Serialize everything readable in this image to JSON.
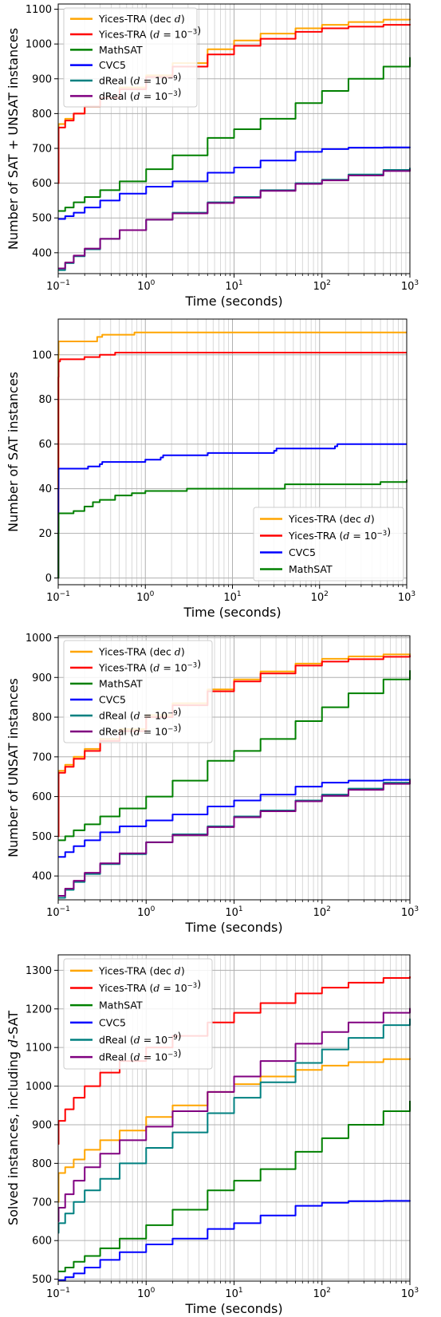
{
  "figure_title": "",
  "chart_data": [
    {
      "type": "line",
      "xscale": "log",
      "xlim": [
        0.1,
        1000
      ],
      "ylim": [
        340,
        1115
      ],
      "xlabel": "Time (seconds)",
      "ylabel": "Number of SAT + UNSAT instances",
      "xtick_labels": [
        "10−1",
        "100",
        "101",
        "102",
        "103"
      ],
      "yticks": [
        400,
        500,
        600,
        700,
        800,
        900,
        1000,
        1100
      ],
      "grid": true,
      "legend_position": "top-left",
      "series": [
        {
          "name": "Yices-TRA (dec d)",
          "color": "#FFA500",
          "x": [
            0.1,
            0.101,
            0.12,
            0.15,
            0.2,
            0.3,
            0.5,
            1,
            2,
            5,
            10,
            20,
            50,
            100,
            200,
            500,
            1000
          ],
          "y": [
            600,
            770,
            785,
            800,
            820,
            845,
            875,
            910,
            945,
            985,
            1010,
            1030,
            1045,
            1055,
            1063,
            1070,
            1072
          ]
        },
        {
          "name": "Yices-TRA (d = 10−3)",
          "color": "#FF0000",
          "x": [
            0.1,
            0.101,
            0.12,
            0.15,
            0.2,
            0.3,
            0.5,
            1,
            2,
            5,
            10,
            20,
            50,
            100,
            200,
            500,
            1000
          ],
          "y": [
            600,
            760,
            780,
            800,
            820,
            845,
            870,
            905,
            935,
            970,
            995,
            1015,
            1035,
            1045,
            1050,
            1055,
            1057
          ]
        },
        {
          "name": "MathSAT",
          "color": "#008000",
          "x": [
            0.1,
            0.12,
            0.15,
            0.2,
            0.3,
            0.5,
            1,
            2,
            5,
            10,
            20,
            50,
            100,
            200,
            500,
            1000
          ],
          "y": [
            520,
            530,
            545,
            560,
            580,
            605,
            640,
            680,
            730,
            755,
            785,
            830,
            865,
            900,
            935,
            962
          ]
        },
        {
          "name": "CVC5",
          "color": "#0000FF",
          "x": [
            0.1,
            0.12,
            0.15,
            0.2,
            0.3,
            0.5,
            1,
            2,
            5,
            10,
            20,
            50,
            100,
            200,
            500,
            1000
          ],
          "y": [
            497,
            505,
            515,
            530,
            550,
            570,
            590,
            605,
            630,
            645,
            665,
            690,
            698,
            702,
            703,
            704
          ]
        },
        {
          "name": "dReal (d = 10−9)",
          "color": "#008080",
          "x": [
            0.1,
            0.12,
            0.15,
            0.2,
            0.3,
            0.5,
            1,
            2,
            5,
            10,
            20,
            50,
            100,
            200,
            500,
            1000
          ],
          "y": [
            350,
            370,
            390,
            410,
            440,
            465,
            495,
            515,
            545,
            560,
            580,
            600,
            610,
            625,
            638,
            644
          ]
        },
        {
          "name": "dReal (d = 10−3)",
          "color": "#800080",
          "x": [
            0.1,
            0.12,
            0.15,
            0.2,
            0.3,
            0.5,
            1,
            2,
            5,
            10,
            20,
            50,
            100,
            200,
            500,
            1000
          ],
          "y": [
            355,
            372,
            392,
            412,
            440,
            465,
            495,
            513,
            543,
            558,
            578,
            598,
            608,
            622,
            635,
            640
          ]
        }
      ]
    },
    {
      "type": "line",
      "xscale": "log",
      "xlim": [
        0.1,
        1000
      ],
      "ylim": [
        -3,
        116
      ],
      "xlabel": "Time (seconds)",
      "ylabel": "Number of SAT instances",
      "xtick_labels": [
        "10−1",
        "100",
        "101",
        "102",
        "103"
      ],
      "yticks": [
        0,
        20,
        40,
        60,
        80,
        100
      ],
      "grid": true,
      "legend_position": "bottom-right",
      "series": [
        {
          "name": "Yices-TRA (dec d)",
          "color": "#FFA500",
          "x": [
            0.1,
            0.1005,
            0.101,
            0.27,
            0.28,
            0.32,
            0.7,
            0.75,
            1000
          ],
          "y": [
            0,
            100,
            106,
            106,
            108,
            109,
            109,
            110,
            110
          ]
        },
        {
          "name": "Yices-TRA (d = 10−3)",
          "color": "#FF0000",
          "x": [
            0.1,
            0.1005,
            0.101,
            0.105,
            0.12,
            0.2,
            0.3,
            0.4,
            0.45,
            1000
          ],
          "y": [
            0,
            90,
            97,
            98,
            98,
            99,
            100,
            100,
            101,
            101
          ]
        },
        {
          "name": "CVC5",
          "color": "#0000FF",
          "x": [
            0.1,
            0.1005,
            0.101,
            0.2,
            0.22,
            0.3,
            0.32,
            0.9,
            1.0,
            1.5,
            1.6,
            5,
            5.2,
            30,
            32,
            150,
            160,
            1000
          ],
          "y": [
            0,
            40,
            49,
            49,
            50,
            51,
            52,
            52,
            53,
            54,
            55,
            55,
            56,
            57,
            58,
            59,
            60,
            60
          ]
        },
        {
          "name": "MathSAT",
          "color": "#008000",
          "x": [
            0.1,
            0.1005,
            0.101,
            0.13,
            0.15,
            0.2,
            0.25,
            0.3,
            0.45,
            0.7,
            1,
            3,
            10,
            40,
            100,
            500,
            1000
          ],
          "y": [
            0,
            20,
            29,
            29,
            30,
            32,
            34,
            35,
            37,
            38,
            39,
            40,
            40,
            42,
            42,
            43,
            44
          ]
        }
      ]
    },
    {
      "type": "line",
      "xscale": "log",
      "xlim": [
        0.1,
        1000
      ],
      "ylim": [
        340,
        1005
      ],
      "xlabel": "Time (seconds)",
      "ylabel": "Number of UNSAT instances",
      "xtick_labels": [
        "10−1",
        "100",
        "101",
        "102",
        "103"
      ],
      "yticks": [
        400,
        500,
        600,
        700,
        800,
        900,
        1000
      ],
      "grid": true,
      "legend_position": "top-left",
      "series": [
        {
          "name": "Yices-TRA (dec d)",
          "color": "#FFA500",
          "x": [
            0.1,
            0.101,
            0.12,
            0.15,
            0.2,
            0.3,
            0.5,
            1,
            2,
            5,
            10,
            20,
            50,
            100,
            200,
            500,
            1000
          ],
          "y": [
            500,
            665,
            680,
            700,
            720,
            745,
            770,
            805,
            835,
            870,
            895,
            915,
            935,
            947,
            953,
            958,
            960
          ]
        },
        {
          "name": "Yices-TRA (d = 10−3)",
          "color": "#FF0000",
          "x": [
            0.1,
            0.101,
            0.12,
            0.15,
            0.2,
            0.3,
            0.5,
            1,
            2,
            5,
            10,
            20,
            50,
            100,
            200,
            500,
            1000
          ],
          "y": [
            500,
            660,
            675,
            695,
            715,
            740,
            765,
            800,
            830,
            865,
            890,
            910,
            930,
            940,
            946,
            952,
            956
          ]
        },
        {
          "name": "MathSAT",
          "color": "#008000",
          "x": [
            0.1,
            0.12,
            0.15,
            0.2,
            0.3,
            0.5,
            1,
            2,
            5,
            10,
            20,
            50,
            100,
            200,
            500,
            1000
          ],
          "y": [
            490,
            500,
            515,
            530,
            550,
            570,
            600,
            640,
            690,
            715,
            745,
            790,
            825,
            860,
            895,
            918
          ]
        },
        {
          "name": "CVC5",
          "color": "#0000FF",
          "x": [
            0.1,
            0.12,
            0.15,
            0.2,
            0.3,
            0.5,
            1,
            2,
            5,
            10,
            20,
            50,
            100,
            200,
            500,
            1000
          ],
          "y": [
            448,
            460,
            475,
            490,
            510,
            525,
            540,
            555,
            575,
            590,
            605,
            625,
            635,
            640,
            642,
            644
          ]
        },
        {
          "name": "dReal (d = 10−9)",
          "color": "#008080",
          "x": [
            0.1,
            0.12,
            0.15,
            0.2,
            0.3,
            0.5,
            1,
            2,
            5,
            10,
            20,
            50,
            100,
            200,
            500,
            1000
          ],
          "y": [
            345,
            365,
            385,
            405,
            430,
            455,
            485,
            505,
            525,
            550,
            565,
            590,
            605,
            620,
            635,
            645
          ]
        },
        {
          "name": "dReal (d = 10−3)",
          "color": "#800080",
          "x": [
            0.1,
            0.12,
            0.15,
            0.2,
            0.3,
            0.5,
            1,
            2,
            5,
            10,
            20,
            50,
            100,
            200,
            500,
            1000
          ],
          "y": [
            350,
            368,
            388,
            408,
            432,
            457,
            485,
            503,
            523,
            548,
            563,
            588,
            602,
            617,
            632,
            642
          ]
        }
      ]
    },
    {
      "type": "line",
      "xscale": "log",
      "xlim": [
        0.1,
        1000
      ],
      "ylim": [
        495,
        1340
      ],
      "xlabel": "Time (seconds)",
      "ylabel": "Solved instances, including d-SAT",
      "xtick_labels": [
        "10−1",
        "100",
        "101",
        "102",
        "103"
      ],
      "yticks": [
        500,
        600,
        700,
        800,
        900,
        1000,
        1100,
        1200,
        1300
      ],
      "grid": true,
      "legend_position": "top-left",
      "series": [
        {
          "name": "Yices-TRA (dec d)",
          "color": "#FFA500",
          "x": [
            0.1,
            0.101,
            0.12,
            0.15,
            0.2,
            0.3,
            0.5,
            1,
            2,
            5,
            10,
            20,
            50,
            100,
            200,
            500,
            1000
          ],
          "y": [
            700,
            775,
            790,
            810,
            835,
            860,
            885,
            920,
            950,
            985,
            1005,
            1025,
            1042,
            1053,
            1062,
            1070,
            1072
          ]
        },
        {
          "name": "Yices-TRA (d = 10−3)",
          "color": "#FF0000",
          "x": [
            0.1,
            0.101,
            0.12,
            0.15,
            0.2,
            0.3,
            0.5,
            1,
            2,
            5,
            10,
            20,
            50,
            100,
            200,
            500,
            1000
          ],
          "y": [
            850,
            910,
            940,
            970,
            1000,
            1035,
            1065,
            1100,
            1130,
            1165,
            1190,
            1215,
            1240,
            1255,
            1268,
            1280,
            1284
          ]
        },
        {
          "name": "MathSAT",
          "color": "#008000",
          "x": [
            0.1,
            0.12,
            0.15,
            0.2,
            0.3,
            0.5,
            1,
            2,
            5,
            10,
            20,
            50,
            100,
            200,
            500,
            1000
          ],
          "y": [
            520,
            530,
            545,
            560,
            580,
            605,
            640,
            680,
            730,
            755,
            785,
            830,
            865,
            900,
            935,
            962
          ]
        },
        {
          "name": "CVC5",
          "color": "#0000FF",
          "x": [
            0.1,
            0.12,
            0.15,
            0.2,
            0.3,
            0.5,
            1,
            2,
            5,
            10,
            20,
            50,
            100,
            200,
            500,
            1000
          ],
          "y": [
            497,
            505,
            515,
            530,
            550,
            570,
            590,
            605,
            630,
            645,
            665,
            690,
            698,
            702,
            703,
            704
          ]
        },
        {
          "name": "dReal (d = 10−9)",
          "color": "#008080",
          "x": [
            0.1,
            0.101,
            0.12,
            0.15,
            0.2,
            0.3,
            0.5,
            1,
            2,
            5,
            10,
            20,
            50,
            100,
            200,
            500,
            1000
          ],
          "y": [
            620,
            645,
            670,
            700,
            730,
            760,
            800,
            840,
            880,
            930,
            970,
            1010,
            1060,
            1095,
            1125,
            1158,
            1175
          ]
        },
        {
          "name": "dReal (d = 10−3)",
          "color": "#800080",
          "x": [
            0.1,
            0.101,
            0.12,
            0.15,
            0.2,
            0.3,
            0.5,
            1,
            2,
            5,
            10,
            20,
            50,
            100,
            200,
            500,
            1000
          ],
          "y": [
            650,
            685,
            720,
            755,
            790,
            825,
            860,
            895,
            935,
            985,
            1025,
            1065,
            1110,
            1140,
            1165,
            1190,
            1202
          ]
        }
      ]
    }
  ]
}
